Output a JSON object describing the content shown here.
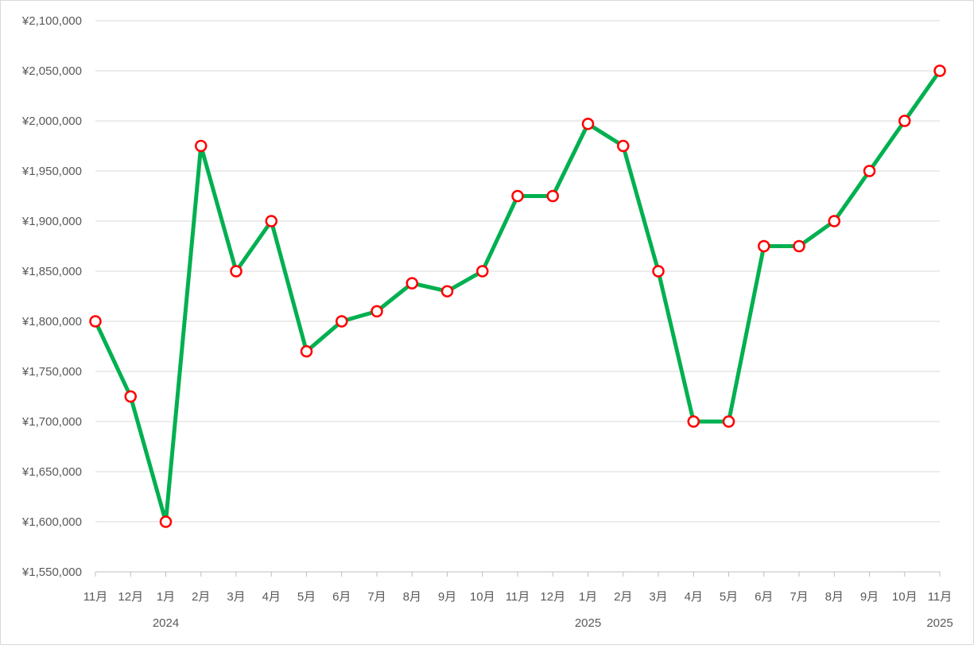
{
  "chart_data": {
    "type": "line",
    "title": "",
    "xlabel": "",
    "ylabel": "",
    "ylim": [
      1550000,
      2100000
    ],
    "y_tick_step": 50000,
    "grid": true,
    "legend": "none",
    "colors": {
      "line": "#00B050",
      "marker_edge": "#FF0000",
      "marker_fill": "#FFFFFF",
      "grid": "#D9D9D9",
      "axis": "#BFBFBF"
    },
    "y_tick_labels": [
      "¥1,550,000",
      "¥1,600,000",
      "¥1,650,000",
      "¥1,700,000",
      "¥1,750,000",
      "¥1,800,000",
      "¥1,850,000",
      "¥1,900,000",
      "¥1,950,000",
      "¥2,000,000",
      "¥2,050,000",
      "¥2,100,000"
    ],
    "categories": [
      "11月",
      "12月",
      "1月",
      "2月",
      "3月",
      "4月",
      "5月",
      "6月",
      "7月",
      "8月",
      "9月",
      "10月",
      "11月",
      "12月",
      "1月",
      "2月",
      "3月",
      "4月",
      "5月",
      "6月",
      "7月",
      "8月",
      "9月",
      "10月",
      "11月"
    ],
    "year_labels": [
      {
        "label": "2024",
        "index": 2
      },
      {
        "label": "2025",
        "index": 14
      },
      {
        "label": "2025",
        "index": 24
      }
    ],
    "series": [
      {
        "values": [
          1800000,
          1725000,
          1600000,
          1975000,
          1850000,
          1900000,
          1770000,
          1800000,
          1810000,
          1838000,
          1830000,
          1850000,
          1925000,
          1925000,
          1997000,
          1975000,
          1850000,
          1700000,
          1700000,
          1875000,
          1875000,
          1900000,
          1950000,
          2000000,
          2050000
        ]
      }
    ]
  }
}
